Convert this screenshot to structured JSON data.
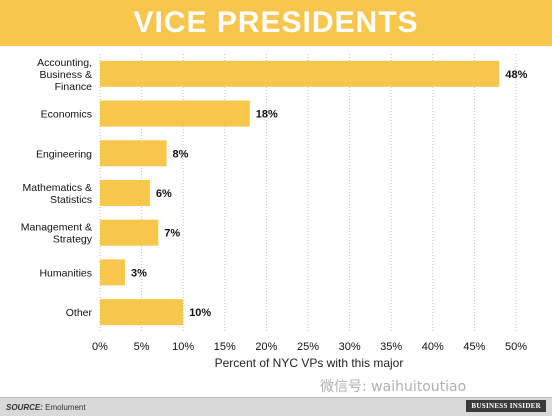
{
  "header": {
    "title": "VICE PRESIDENTS"
  },
  "chart_data": {
    "type": "bar",
    "orientation": "horizontal",
    "categories": [
      [
        "Accounting,",
        "Business &",
        "Finance"
      ],
      [
        "Economics"
      ],
      [
        "Engineering"
      ],
      [
        "Mathematics &",
        "Statistics"
      ],
      [
        "Management &",
        "Strategy"
      ],
      [
        "Humanities"
      ],
      [
        "Other"
      ]
    ],
    "values": [
      48,
      18,
      8,
      6,
      7,
      3,
      10
    ],
    "value_labels": [
      "48%",
      "18%",
      "8%",
      "6%",
      "7%",
      "3%",
      "10%"
    ],
    "xlabel": "Percent of NYC VPs with this major",
    "xlim": [
      0,
      50
    ],
    "xticks": [
      "0%",
      "5%",
      "10%",
      "15%",
      "20%",
      "25%",
      "30%",
      "35%",
      "40%",
      "45%",
      "50%"
    ],
    "bar_color": "#f7c64c",
    "grid": "vertical dotted"
  },
  "footer": {
    "source_label": "SOURCE:",
    "source_value": "Emolument",
    "brand": "BUSINESS INSIDER"
  },
  "watermark": "微信号: waihuitoutiao"
}
